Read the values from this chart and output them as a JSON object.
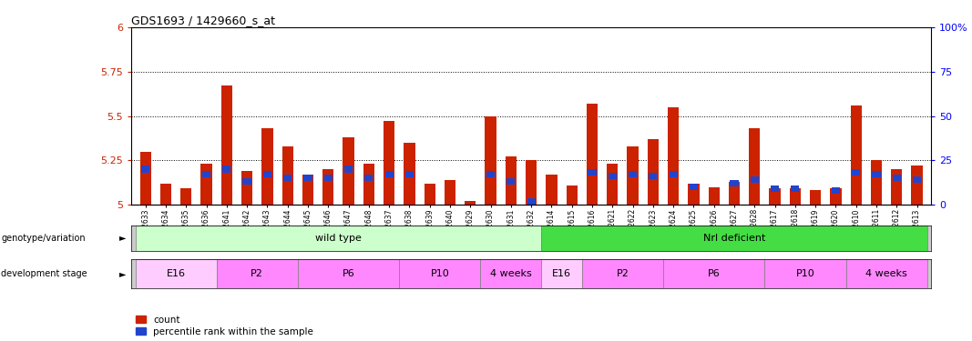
{
  "title": "GDS1693 / 1429660_s_at",
  "samples": [
    "GSM92633",
    "GSM92634",
    "GSM92635",
    "GSM92636",
    "GSM92641",
    "GSM92642",
    "GSM92643",
    "GSM92644",
    "GSM92645",
    "GSM92646",
    "GSM92647",
    "GSM92648",
    "GSM92637",
    "GSM92638",
    "GSM92639",
    "GSM92640",
    "GSM92629",
    "GSM92630",
    "GSM92631",
    "GSM92632",
    "GSM92614",
    "GSM92615",
    "GSM92616",
    "GSM92621",
    "GSM92622",
    "GSM92623",
    "GSM92624",
    "GSM92625",
    "GSM92626",
    "GSM92627",
    "GSM92628",
    "GSM92617",
    "GSM92618",
    "GSM92619",
    "GSM92620",
    "GSM92610",
    "GSM92611",
    "GSM92612",
    "GSM92613"
  ],
  "red_values": [
    5.3,
    5.12,
    5.09,
    5.23,
    5.67,
    5.19,
    5.43,
    5.33,
    5.17,
    5.2,
    5.38,
    5.23,
    5.47,
    5.35,
    5.12,
    5.14,
    5.02,
    5.5,
    5.27,
    5.25,
    5.17,
    5.11,
    5.57,
    5.23,
    5.33,
    5.37,
    5.55,
    5.12,
    5.1,
    5.13,
    5.43,
    5.09,
    5.09,
    5.08,
    5.09,
    5.56,
    5.25,
    5.2,
    5.22
  ],
  "blue_percentile": [
    20,
    14,
    13,
    17,
    20,
    13,
    17,
    15,
    15,
    15,
    20,
    15,
    17,
    17,
    16,
    18,
    5,
    17,
    13,
    2,
    22,
    14,
    18,
    16,
    17,
    16,
    17,
    10,
    11,
    12,
    14,
    9,
    9,
    9,
    8,
    18,
    17,
    15,
    14
  ],
  "bar_bottom": 5.0,
  "ylim_left": [
    5.0,
    6.0
  ],
  "ylim_right": [
    0,
    100
  ],
  "yticks_left": [
    5.0,
    5.25,
    5.5,
    5.75,
    6.0
  ],
  "ytick_labels_left": [
    "5",
    "5.25",
    "5.5",
    "5.75",
    "6"
  ],
  "yticks_right": [
    0,
    25,
    50,
    75,
    100
  ],
  "ytick_labels_right": [
    "0",
    "25",
    "50",
    "75",
    "100%"
  ],
  "hlines": [
    5.25,
    5.5,
    5.75
  ],
  "red_color": "#cc2200",
  "blue_color": "#2244cc",
  "genotype_groups": [
    {
      "label": "wild type",
      "start": 0,
      "end": 19,
      "color": "#ccffcc"
    },
    {
      "label": "Nrl deficient",
      "start": 20,
      "end": 38,
      "color": "#44dd44"
    }
  ],
  "stage_groups": [
    {
      "label": "E16",
      "start": 0,
      "end": 3
    },
    {
      "label": "P2",
      "start": 4,
      "end": 7
    },
    {
      "label": "P6",
      "start": 8,
      "end": 12
    },
    {
      "label": "P10",
      "start": 13,
      "end": 16
    },
    {
      "label": "4 weeks",
      "start": 17,
      "end": 19
    },
    {
      "label": "E16",
      "start": 20,
      "end": 21
    },
    {
      "label": "P2",
      "start": 22,
      "end": 25
    },
    {
      "label": "P6",
      "start": 26,
      "end": 30
    },
    {
      "label": "P10",
      "start": 31,
      "end": 34
    },
    {
      "label": "4 weeks",
      "start": 35,
      "end": 38
    }
  ],
  "stage_color_light": "#ffccff",
  "stage_color_dark": "#ff88ff",
  "legend_count_label": "count",
  "legend_pct_label": "percentile rank within the sample"
}
